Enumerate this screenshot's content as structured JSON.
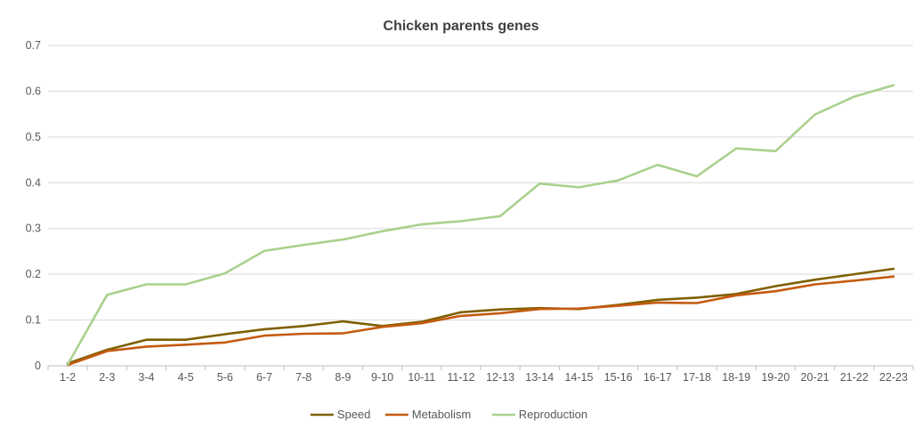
{
  "chart_data": {
    "type": "line",
    "title": "Chicken parents genes",
    "xlabel": "",
    "ylabel": "",
    "ylim": [
      0,
      0.7
    ],
    "yticks": [
      "0",
      "0.1",
      "0.2",
      "0.3",
      "0.4",
      "0.5",
      "0.6",
      "0.7"
    ],
    "grid": true,
    "legend_position": "bottom",
    "categories": [
      "1-2",
      "2-3",
      "3-4",
      "4-5",
      "5-6",
      "6-7",
      "7-8",
      "8-9",
      "9-10",
      "10-11",
      "11-12",
      "12-13",
      "13-14",
      "14-15",
      "15-16",
      "16-17",
      "17-18",
      "18-19",
      "19-20",
      "20-21",
      "21-22",
      "22-23"
    ],
    "series": [
      {
        "name": "Speed",
        "color": "#7f6000",
        "values": [
          0.005,
          0.035,
          0.057,
          0.057,
          0.069,
          0.08,
          0.087,
          0.097,
          0.087,
          0.096,
          0.117,
          0.123,
          0.126,
          0.124,
          0.133,
          0.144,
          0.149,
          0.157,
          0.174,
          0.188,
          0.2,
          0.212
        ]
      },
      {
        "name": "Metabolism",
        "color": "#c55a11",
        "values": [
          0.002,
          0.032,
          0.042,
          0.046,
          0.051,
          0.066,
          0.07,
          0.071,
          0.085,
          0.093,
          0.109,
          0.115,
          0.124,
          0.125,
          0.131,
          0.138,
          0.137,
          0.154,
          0.163,
          0.178,
          0.186,
          0.195
        ]
      },
      {
        "name": "Reproduction",
        "color": "#a9d18e",
        "values": [
          0.003,
          0.155,
          0.178,
          0.178,
          0.202,
          0.251,
          0.264,
          0.276,
          0.294,
          0.309,
          0.316,
          0.327,
          0.398,
          0.39,
          0.405,
          0.439,
          0.414,
          0.475,
          0.469,
          0.549,
          0.588,
          0.613
        ]
      }
    ]
  }
}
